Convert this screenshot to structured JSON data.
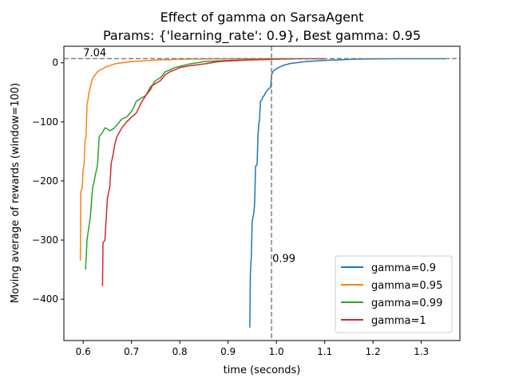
{
  "chart_data": {
    "type": "line",
    "title": "Effect of gamma on SarsaAgent",
    "subtitle": "Params: {'learning_rate': 0.9}, Best gamma: 0.95",
    "xlabel": "time (seconds)",
    "ylabel": "Moving average of rewards (window=100)",
    "xlim": [
      0.56,
      1.38
    ],
    "ylim": [
      -470,
      28
    ],
    "xticks": [
      0.6,
      0.7,
      0.8,
      0.9,
      1.0,
      1.1,
      1.2,
      1.3
    ],
    "xtick_labels": [
      "0.6",
      "0.7",
      "0.8",
      "0.9",
      "1.0",
      "1.1",
      "1.2",
      "1.3"
    ],
    "yticks": [
      0,
      -100,
      -200,
      -300,
      -400
    ],
    "ytick_labels": [
      "0",
      "−100",
      "−200",
      "−300",
      "−400"
    ],
    "grid": false,
    "legend_position": "lower-right",
    "hline": {
      "y": 7.04,
      "label": "7.04",
      "style": "dashed",
      "color": "#808080"
    },
    "vline": {
      "x": 0.99,
      "label": "0.99",
      "style": "dashed",
      "color": "#808080"
    },
    "series": [
      {
        "name": "gamma=0.9",
        "color": "#1f77b4",
        "x": [
          0.945,
          0.946,
          0.948,
          0.95,
          0.952,
          0.954,
          0.955,
          0.957,
          0.96,
          0.962,
          0.964,
          0.965,
          0.967,
          0.97,
          0.972,
          0.975,
          0.978,
          0.982,
          0.985,
          0.988,
          0.99,
          0.993,
          0.996,
          1.0,
          1.005,
          1.012,
          1.02,
          1.03,
          1.04,
          1.05,
          1.06,
          1.08,
          1.1,
          1.13,
          1.16,
          1.2,
          1.25,
          1.3,
          1.35
        ],
        "y": [
          -448,
          -360,
          -330,
          -268,
          -260,
          -250,
          -238,
          -175,
          -172,
          -120,
          -100,
          -98,
          -65,
          -63,
          -58,
          -55,
          -50,
          -46,
          -43,
          -42,
          -20,
          -15,
          -12,
          -10,
          -8,
          -5,
          -3,
          -1,
          0,
          1,
          2,
          3,
          4,
          5,
          6,
          6.5,
          7,
          7,
          7
        ]
      },
      {
        "name": "gamma=0.95",
        "color": "#ff7f0e",
        "x": [
          0.594,
          0.595,
          0.598,
          0.6,
          0.602,
          0.604,
          0.606,
          0.608,
          0.61,
          0.612,
          0.615,
          0.618,
          0.62,
          0.625,
          0.63,
          0.635,
          0.64,
          0.645,
          0.65,
          0.655,
          0.66,
          0.67,
          0.68,
          0.69,
          0.7,
          0.72,
          0.74,
          0.76,
          0.78,
          0.8,
          0.85,
          0.9,
          0.95,
          1.0,
          1.05,
          1.1
        ],
        "y": [
          -335,
          -218,
          -212,
          -180,
          -172,
          -130,
          -125,
          -70,
          -62,
          -50,
          -40,
          -30,
          -25,
          -20,
          -15,
          -12,
          -10,
          -8,
          -6,
          -5,
          -3,
          -1,
          0,
          1,
          2,
          3,
          4,
          5,
          5.5,
          6,
          6.5,
          7,
          7,
          7,
          7,
          7
        ]
      },
      {
        "name": "gamma=0.99",
        "color": "#2ca02c",
        "x": [
          0.605,
          0.608,
          0.61,
          0.615,
          0.618,
          0.62,
          0.623,
          0.625,
          0.628,
          0.63,
          0.633,
          0.636,
          0.64,
          0.645,
          0.65,
          0.655,
          0.665,
          0.68,
          0.69,
          0.7,
          0.705,
          0.71,
          0.72,
          0.73,
          0.74,
          0.745,
          0.75,
          0.76,
          0.77,
          0.78,
          0.79,
          0.8,
          0.82,
          0.85,
          0.9,
          0.95,
          1.0
        ],
        "y": [
          -350,
          -300,
          -288,
          -260,
          -225,
          -210,
          -200,
          -190,
          -180,
          -170,
          -125,
          -122,
          -118,
          -110,
          -112,
          -115,
          -110,
          -95,
          -92,
          -82,
          -75,
          -65,
          -60,
          -55,
          -45,
          -35,
          -30,
          -25,
          -15,
          -12,
          -8,
          -6,
          -2,
          2,
          4,
          5,
          6
        ]
      },
      {
        "name": "gamma=1",
        "color": "#d62728",
        "x": [
          0.64,
          0.641,
          0.645,
          0.648,
          0.65,
          0.655,
          0.658,
          0.662,
          0.665,
          0.668,
          0.67,
          0.68,
          0.69,
          0.7,
          0.71,
          0.72,
          0.73,
          0.74,
          0.75,
          0.76,
          0.77,
          0.78,
          0.79,
          0.8,
          0.82,
          0.85,
          0.88,
          0.9,
          0.95,
          1.0,
          1.05,
          1.1
        ],
        "y": [
          -378,
          -305,
          -300,
          -260,
          -230,
          -210,
          -170,
          -155,
          -140,
          -130,
          -125,
          -110,
          -100,
          -92,
          -85,
          -68,
          -55,
          -40,
          -35,
          -30,
          -20,
          -15,
          -12,
          -8,
          -5,
          -2,
          2,
          3,
          5,
          6,
          7,
          7
        ]
      }
    ]
  }
}
